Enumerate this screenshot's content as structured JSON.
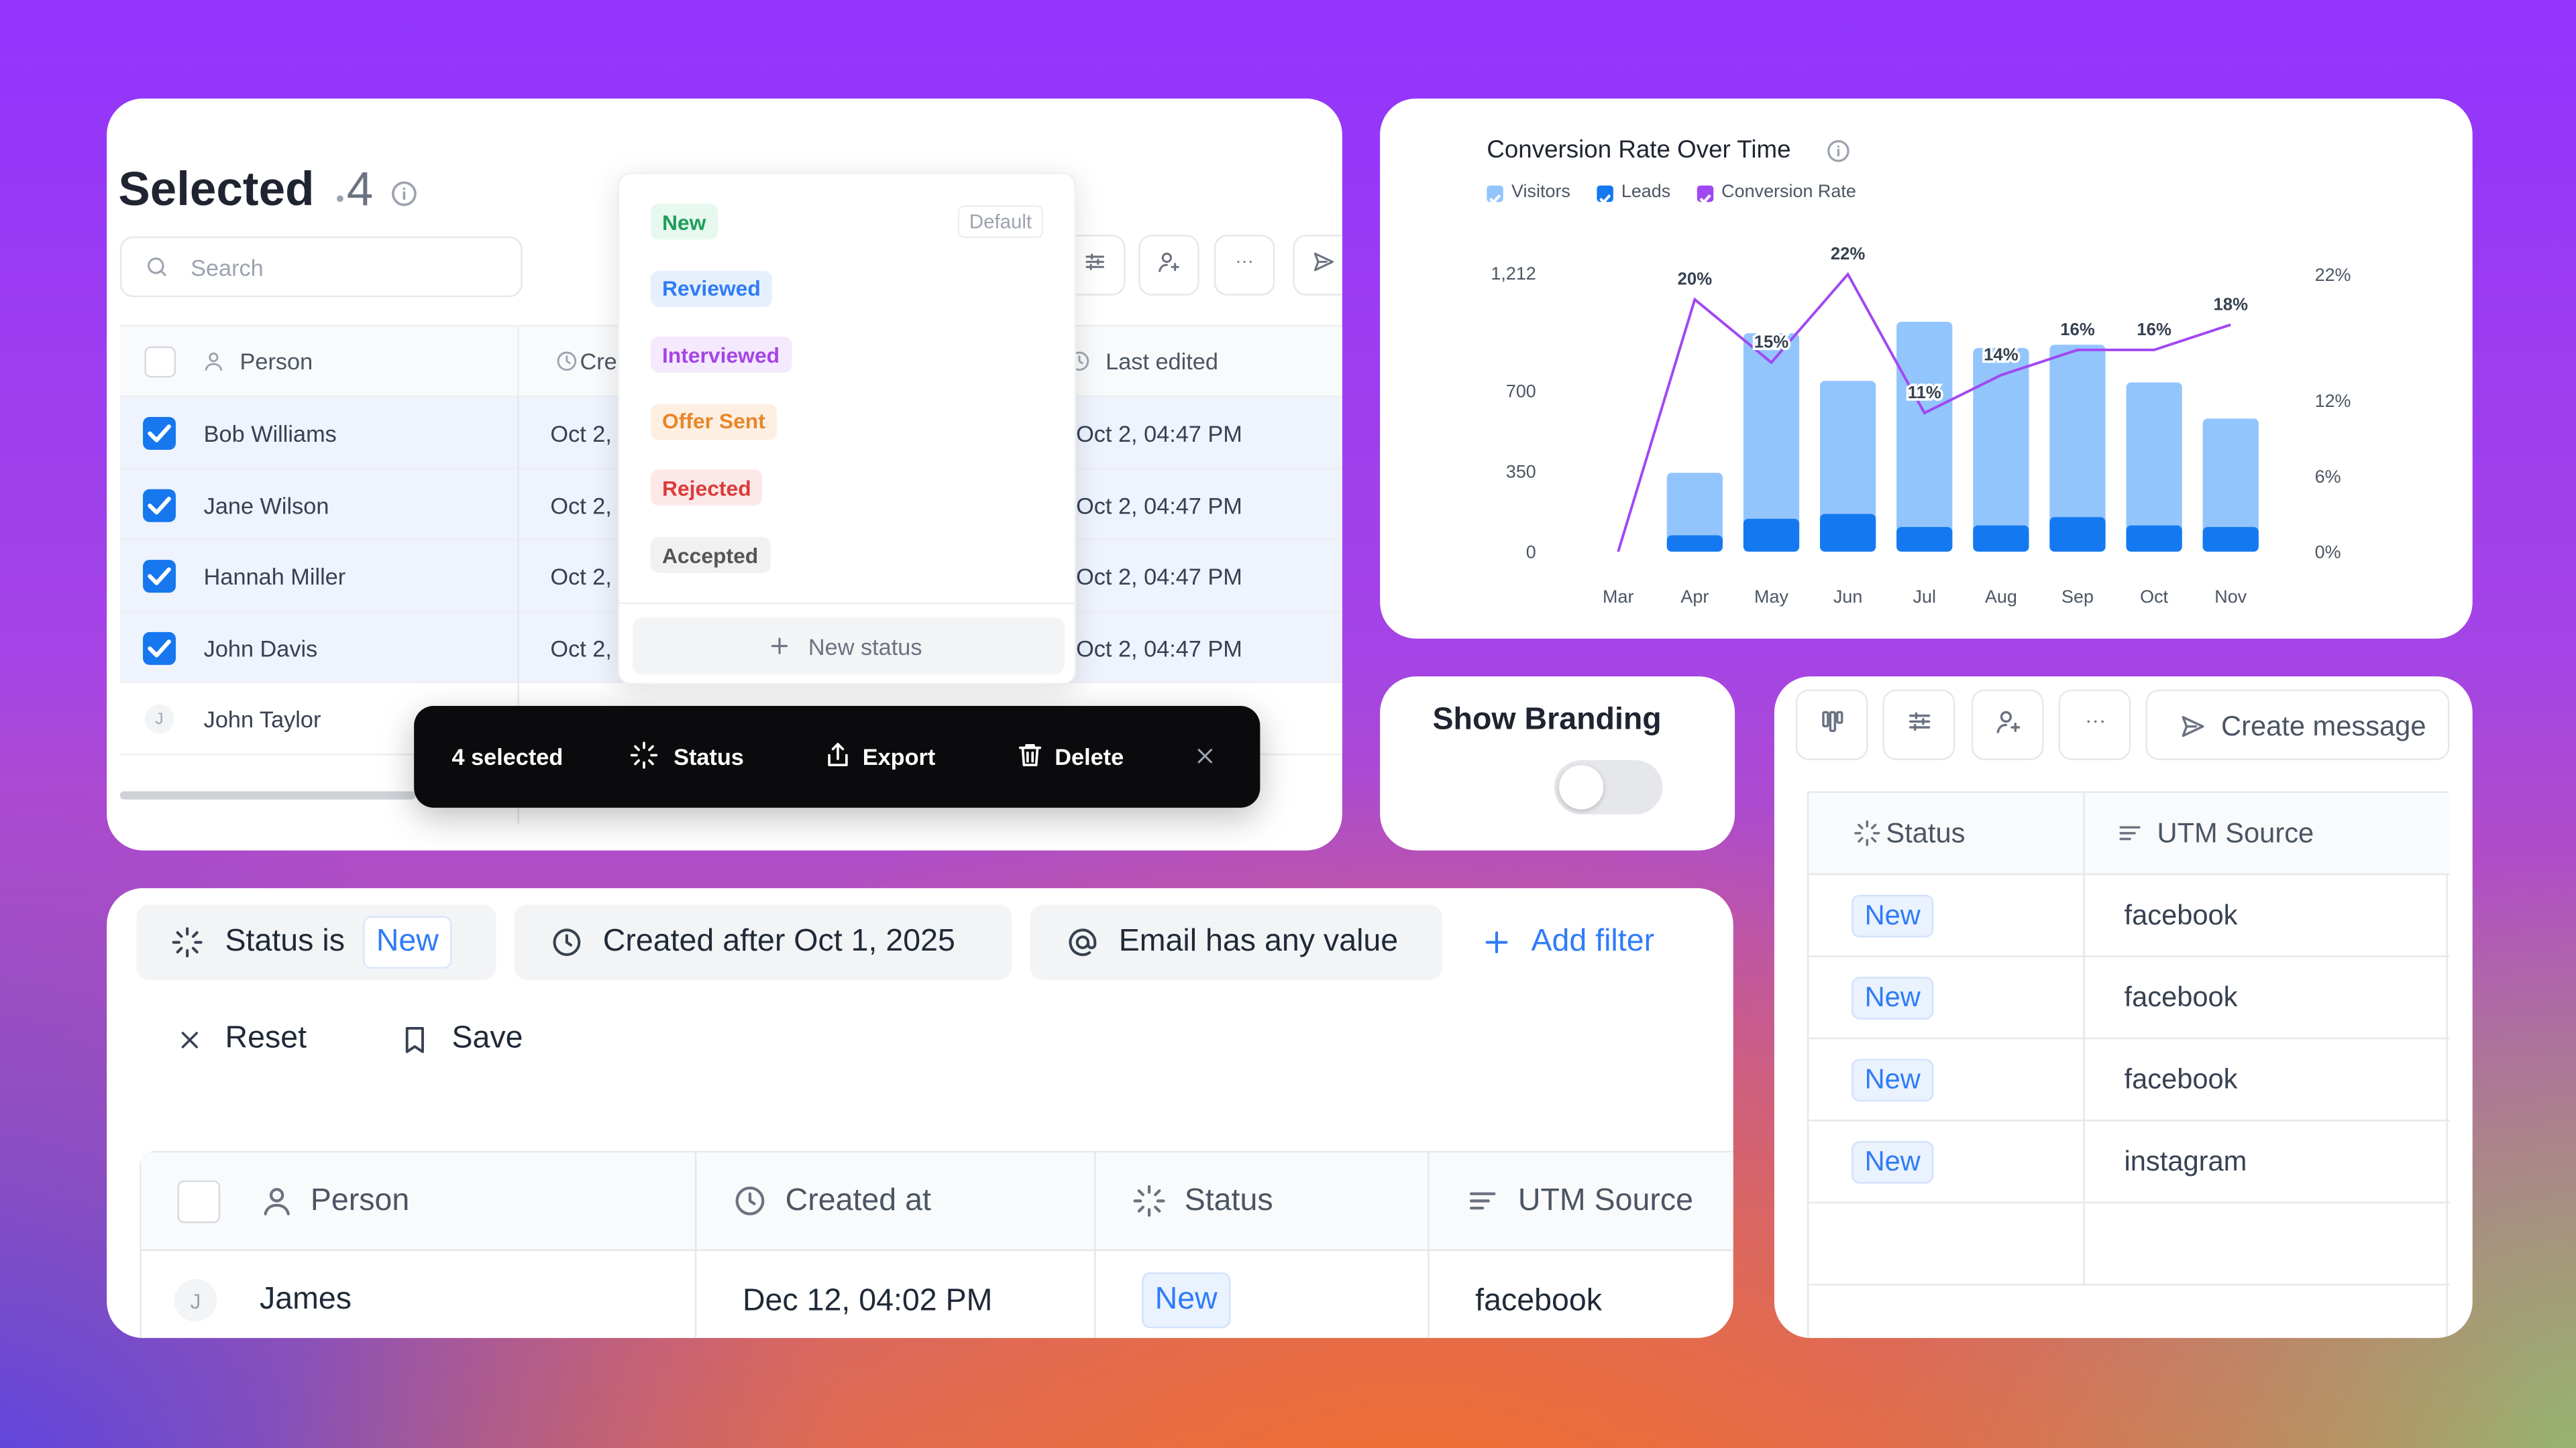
{
  "selection_panel": {
    "title": "Selected",
    "count": 4,
    "search_placeholder": "Search",
    "columns": [
      "Person",
      "Cre",
      "Last edited"
    ],
    "rows": [
      {
        "name": "Bob Williams",
        "created": "Oct 2,",
        "last_edited": "Oct 2, 04:47 PM",
        "selected": true
      },
      {
        "name": "Jane Wilson",
        "created": "Oct 2,",
        "last_edited": "Oct 2, 04:47 PM",
        "selected": true
      },
      {
        "name": "Hannah Miller",
        "created": "Oct 2,",
        "last_edited": "Oct 2, 04:47 PM",
        "selected": true
      },
      {
        "name": "John Davis",
        "created": "Oct 2,",
        "last_edited": "Oct 2, 04:47 PM",
        "selected": true
      },
      {
        "avatar": "J",
        "name": "John Taylor",
        "selected": false
      }
    ]
  },
  "status_menu": {
    "options": [
      "New",
      "Reviewed",
      "Interviewed",
      "Offer Sent",
      "Rejected",
      "Accepted"
    ],
    "default_tag": "Default",
    "add_label": "New status"
  },
  "bulk_bar": {
    "selection": "4 selected",
    "actions": [
      "Status",
      "Export",
      "Delete"
    ]
  },
  "branding": {
    "label": "Show Branding",
    "enabled": false
  },
  "side_table": {
    "toolbar_action": "Create message",
    "columns": [
      "Status",
      "UTM Source"
    ],
    "rows": [
      [
        "New",
        "facebook"
      ],
      [
        "New",
        "facebook"
      ],
      [
        "New",
        "facebook"
      ],
      [
        "New",
        "instagram"
      ]
    ]
  },
  "filters": {
    "chips": [
      {
        "field": "Status is",
        "value": "New"
      },
      {
        "text": "Created after Oct 1, 2025"
      },
      {
        "text": "Email has any value"
      }
    ],
    "add": "Add filter",
    "reset": "Reset",
    "save": "Save"
  },
  "main_table": {
    "columns": [
      "Person",
      "Created at",
      "Status",
      "UTM Source"
    ],
    "rows": [
      {
        "avatar": "J",
        "name": "James",
        "created_at": "Dec 12, 04:02 PM",
        "status": "New",
        "utm_source": "facebook"
      }
    ]
  },
  "chart_data": {
    "type": "bar",
    "title": "Conversion Rate Over Time",
    "categories": [
      "Mar",
      "Apr",
      "May",
      "Jun",
      "Jul",
      "Aug",
      "Sep",
      "Oct",
      "Nov"
    ],
    "series": [
      {
        "name": "Visitors",
        "color": "#93c5fd",
        "values": [
          0,
          343,
          950,
          743,
          1000,
          886,
          900,
          736,
          579
        ]
      },
      {
        "name": "Leads",
        "color": "#1479f0",
        "values": [
          0,
          71,
          143,
          164,
          107,
          114,
          150,
          114,
          107
        ]
      },
      {
        "name": "Conversion Rate",
        "type": "line",
        "axis": "y2",
        "color": "#a048f2",
        "values": [
          0,
          20,
          15,
          22,
          11,
          14,
          16,
          16,
          18
        ],
        "value_labels": [
          null,
          "20%",
          "15%",
          "22%",
          "11%",
          "14%",
          "16%",
          "16%",
          "18%"
        ]
      }
    ],
    "ylim": [
      0,
      1300
    ],
    "yticks": [
      0,
      350,
      700,
      {
        "value": 1212,
        "label": "1,212"
      }
    ],
    "y2lim": [
      0,
      23.7
    ],
    "y2ticks": [
      {
        "value": 0,
        "label": "0%"
      },
      {
        "value": 6,
        "label": "6%"
      },
      {
        "value": 12,
        "label": "12%"
      },
      {
        "value": 22,
        "label": "22%"
      }
    ],
    "grid": false,
    "legend": "top-left"
  }
}
